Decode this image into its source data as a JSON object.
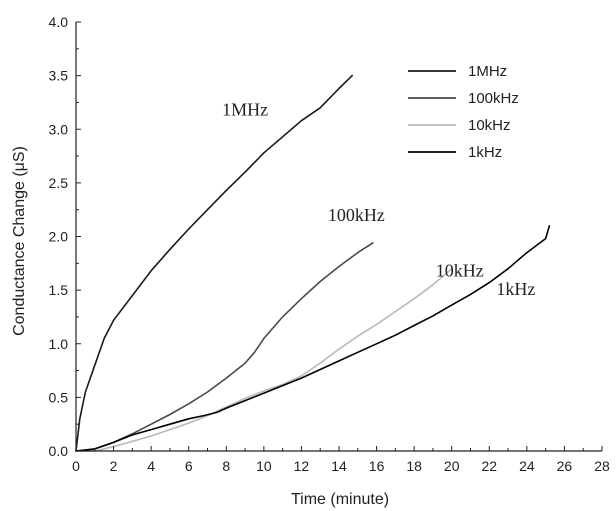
{
  "chart_data": {
    "type": "line",
    "title": "",
    "xlabel": "Time (minute)",
    "ylabel": "Conductance Change (μS)",
    "xlim": [
      0,
      28
    ],
    "ylim": [
      0,
      4.0
    ],
    "xticks": [
      0,
      2,
      4,
      6,
      8,
      10,
      12,
      14,
      16,
      18,
      20,
      22,
      24,
      26,
      28
    ],
    "yticks": [
      "0.0",
      "0.5",
      "1.0",
      "1.5",
      "2.0",
      "2.5",
      "3.0",
      "3.5",
      "4.0"
    ],
    "grid": false,
    "legend_position": "top-right",
    "series": [
      {
        "name": "1MHz",
        "color": "#1a1a1a",
        "annotation": "1MHz",
        "points": [
          [
            0,
            0
          ],
          [
            0.2,
            0.3
          ],
          [
            0.5,
            0.55
          ],
          [
            1,
            0.8
          ],
          [
            1.5,
            1.05
          ],
          [
            2,
            1.22
          ],
          [
            3,
            1.45
          ],
          [
            4,
            1.68
          ],
          [
            5,
            1.88
          ],
          [
            6,
            2.07
          ],
          [
            7,
            2.25
          ],
          [
            8,
            2.43
          ],
          [
            9,
            2.6
          ],
          [
            10,
            2.78
          ],
          [
            11,
            2.93
          ],
          [
            12,
            3.08
          ],
          [
            13,
            3.2
          ],
          [
            14,
            3.38
          ],
          [
            14.7,
            3.5
          ]
        ]
      },
      {
        "name": "100kHz",
        "color": "#4a4a4a",
        "annotation": "100kHz",
        "points": [
          [
            0,
            0
          ],
          [
            1,
            0.02
          ],
          [
            2,
            0.08
          ],
          [
            3,
            0.16
          ],
          [
            4,
            0.25
          ],
          [
            5,
            0.34
          ],
          [
            6,
            0.44
          ],
          [
            7,
            0.55
          ],
          [
            8,
            0.68
          ],
          [
            9,
            0.82
          ],
          [
            9.5,
            0.92
          ],
          [
            10,
            1.05
          ],
          [
            11,
            1.25
          ],
          [
            12,
            1.42
          ],
          [
            13,
            1.58
          ],
          [
            14,
            1.72
          ],
          [
            15,
            1.85
          ],
          [
            15.8,
            1.94
          ]
        ]
      },
      {
        "name": "10kHz",
        "color": "#b8b8b8",
        "annotation": "10kHz",
        "points": [
          [
            0,
            0
          ],
          [
            1,
            0
          ],
          [
            2,
            0.04
          ],
          [
            3,
            0.09
          ],
          [
            4,
            0.14
          ],
          [
            5,
            0.2
          ],
          [
            6,
            0.26
          ],
          [
            7,
            0.33
          ],
          [
            8,
            0.41
          ],
          [
            9,
            0.49
          ],
          [
            10,
            0.56
          ],
          [
            11,
            0.62
          ],
          [
            12,
            0.7
          ],
          [
            13,
            0.82
          ],
          [
            14,
            0.95
          ],
          [
            15,
            1.07
          ],
          [
            16,
            1.18
          ],
          [
            17,
            1.3
          ],
          [
            18,
            1.42
          ],
          [
            19,
            1.55
          ],
          [
            20,
            1.7
          ]
        ]
      },
      {
        "name": "1kHz",
        "color": "#000000",
        "annotation": "1kHz",
        "points": [
          [
            0,
            0
          ],
          [
            1,
            0.02
          ],
          [
            2,
            0.08
          ],
          [
            3,
            0.15
          ],
          [
            4,
            0.2
          ],
          [
            5,
            0.25
          ],
          [
            6,
            0.3
          ],
          [
            6.8,
            0.33
          ],
          [
            7.5,
            0.36
          ],
          [
            8,
            0.4
          ],
          [
            9,
            0.47
          ],
          [
            10,
            0.54
          ],
          [
            11,
            0.61
          ],
          [
            12,
            0.68
          ],
          [
            13,
            0.76
          ],
          [
            14,
            0.84
          ],
          [
            15,
            0.92
          ],
          [
            16,
            1.0
          ],
          [
            17,
            1.08
          ],
          [
            18,
            1.17
          ],
          [
            19,
            1.26
          ],
          [
            20,
            1.36
          ],
          [
            21,
            1.46
          ],
          [
            22,
            1.57
          ],
          [
            23,
            1.7
          ],
          [
            24,
            1.85
          ],
          [
            25,
            1.98
          ],
          [
            25.2,
            2.1
          ]
        ]
      }
    ]
  }
}
